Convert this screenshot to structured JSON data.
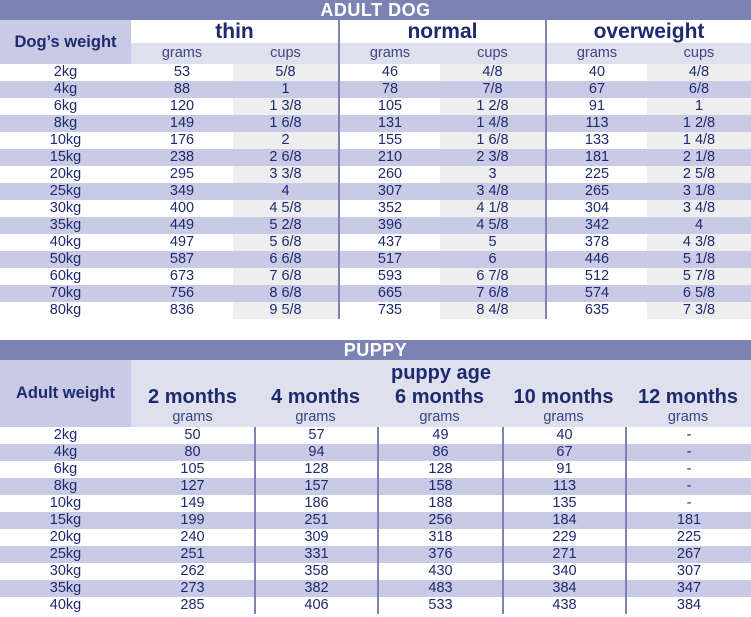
{
  "adult": {
    "banner": "ADULT DOG",
    "corner_label": "Dog’s weight",
    "conditions": [
      "thin",
      "normal",
      "overweight"
    ],
    "grams_label": "grams",
    "cups_label": "cups",
    "rows": [
      {
        "w": "2kg",
        "t_g": "53",
        "t_c": "5/8",
        "n_g": "46",
        "n_c": "4/8",
        "o_g": "40",
        "o_c": "4/8"
      },
      {
        "w": "4kg",
        "t_g": "88",
        "t_c": "1",
        "n_g": "78",
        "n_c": "7/8",
        "o_g": "67",
        "o_c": "6/8"
      },
      {
        "w": "6kg",
        "t_g": "120",
        "t_c": "1 3/8",
        "n_g": "105",
        "n_c": "1 2/8",
        "o_g": "91",
        "o_c": "1"
      },
      {
        "w": "8kg",
        "t_g": "149",
        "t_c": "1 6/8",
        "n_g": "131",
        "n_c": "1 4/8",
        "o_g": "113",
        "o_c": "1 2/8"
      },
      {
        "w": "10kg",
        "t_g": "176",
        "t_c": "2",
        "n_g": "155",
        "n_c": "1 6/8",
        "o_g": "133",
        "o_c": "1 4/8"
      },
      {
        "w": "15kg",
        "t_g": "238",
        "t_c": "2 6/8",
        "n_g": "210",
        "n_c": "2 3/8",
        "o_g": "181",
        "o_c": "2 1/8"
      },
      {
        "w": "20kg",
        "t_g": "295",
        "t_c": "3 3/8",
        "n_g": "260",
        "n_c": "3",
        "o_g": "225",
        "o_c": "2 5/8"
      },
      {
        "w": "25kg",
        "t_g": "349",
        "t_c": "4",
        "n_g": "307",
        "n_c": "3 4/8",
        "o_g": "265",
        "o_c": "3 1/8"
      },
      {
        "w": "30kg",
        "t_g": "400",
        "t_c": "4 5/8",
        "n_g": "352",
        "n_c": "4 1/8",
        "o_g": "304",
        "o_c": "3 4/8"
      },
      {
        "w": "35kg",
        "t_g": "449",
        "t_c": "5 2/8",
        "n_g": "396",
        "n_c": "4 5/8",
        "o_g": "342",
        "o_c": "4"
      },
      {
        "w": "40kg",
        "t_g": "497",
        "t_c": "5 6/8",
        "n_g": "437",
        "n_c": "5",
        "o_g": "378",
        "o_c": "4 3/8"
      },
      {
        "w": "50kg",
        "t_g": "587",
        "t_c": "6 6/8",
        "n_g": "517",
        "n_c": "6",
        "o_g": "446",
        "o_c": "5 1/8"
      },
      {
        "w": "60kg",
        "t_g": "673",
        "t_c": "7 6/8",
        "n_g": "593",
        "n_c": "6 7/8",
        "o_g": "512",
        "o_c": "5 7/8"
      },
      {
        "w": "70kg",
        "t_g": "756",
        "t_c": "8 6/8",
        "n_g": "665",
        "n_c": "7 6/8",
        "o_g": "574",
        "o_c": "6 5/8"
      },
      {
        "w": "80kg",
        "t_g": "836",
        "t_c": "9 5/8",
        "n_g": "735",
        "n_c": "8 4/8",
        "o_g": "635",
        "o_c": "7 3/8"
      }
    ]
  },
  "puppy": {
    "banner": "PUPPY",
    "corner_label": "Adult weight",
    "age_title": "puppy age",
    "months": [
      "2 months",
      "4 months",
      "6 months",
      "10 months",
      "12 months"
    ],
    "grams_label": "grams",
    "rows": [
      {
        "w": "2kg",
        "v": [
          "50",
          "57",
          "49",
          "40",
          "-"
        ]
      },
      {
        "w": "4kg",
        "v": [
          "80",
          "94",
          "86",
          "67",
          "-"
        ]
      },
      {
        "w": "6kg",
        "v": [
          "105",
          "128",
          "128",
          "91",
          "-"
        ]
      },
      {
        "w": "8kg",
        "v": [
          "127",
          "157",
          "158",
          "113",
          "-"
        ]
      },
      {
        "w": "10kg",
        "v": [
          "149",
          "186",
          "188",
          "135",
          "-"
        ]
      },
      {
        "w": "15kg",
        "v": [
          "199",
          "251",
          "256",
          "184",
          "181"
        ]
      },
      {
        "w": "20kg",
        "v": [
          "240",
          "309",
          "318",
          "229",
          "225"
        ]
      },
      {
        "w": "25kg",
        "v": [
          "251",
          "331",
          "376",
          "271",
          "267"
        ]
      },
      {
        "w": "30kg",
        "v": [
          "262",
          "358",
          "430",
          "340",
          "307"
        ]
      },
      {
        "w": "35kg",
        "v": [
          "273",
          "382",
          "483",
          "384",
          "347"
        ]
      },
      {
        "w": "40kg",
        "v": [
          "285",
          "406",
          "533",
          "438",
          "384"
        ]
      }
    ]
  }
}
